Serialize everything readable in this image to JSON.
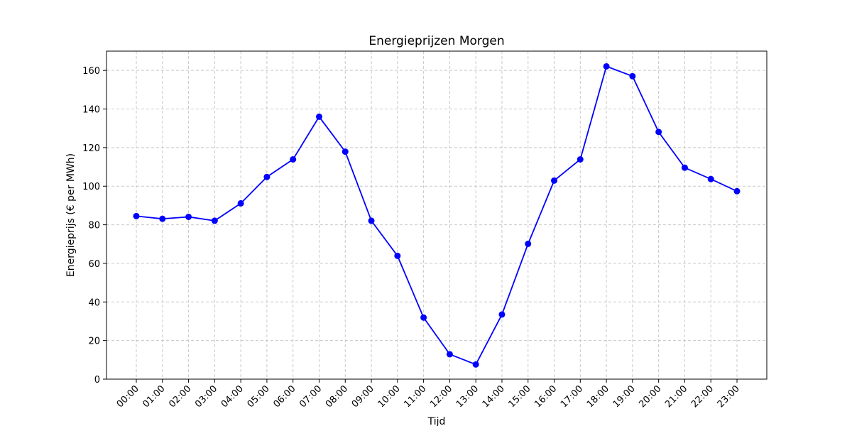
{
  "chart_data": {
    "type": "line",
    "title": "Energieprijzen Morgen",
    "xlabel": "Tijd",
    "ylabel": "Energieprijs (€ per MWh)",
    "categories": [
      "00:00",
      "01:00",
      "02:00",
      "03:00",
      "04:00",
      "05:00",
      "06:00",
      "07:00",
      "08:00",
      "09:00",
      "10:00",
      "11:00",
      "12:00",
      "13:00",
      "14:00",
      "15:00",
      "16:00",
      "17:00",
      "18:00",
      "19:00",
      "20:00",
      "21:00",
      "22:00",
      "23:00"
    ],
    "series": [
      {
        "values": [
          84.5,
          83.1,
          84.1,
          82.1,
          91.1,
          104.8,
          113.9,
          136.0,
          117.9,
          82.1,
          63.9,
          31.9,
          12.9,
          7.6,
          33.5,
          70.1,
          102.9,
          113.9,
          162.1,
          157.0,
          128.1,
          109.6,
          103.7,
          97.4
        ],
        "color": "#0000ff",
        "marker": "circle"
      }
    ],
    "ylim": [
      0,
      170
    ],
    "yticks": [
      0,
      20,
      40,
      60,
      80,
      100,
      120,
      140,
      160
    ],
    "grid": true,
    "grid_style": "dashed",
    "legend": "none"
  }
}
